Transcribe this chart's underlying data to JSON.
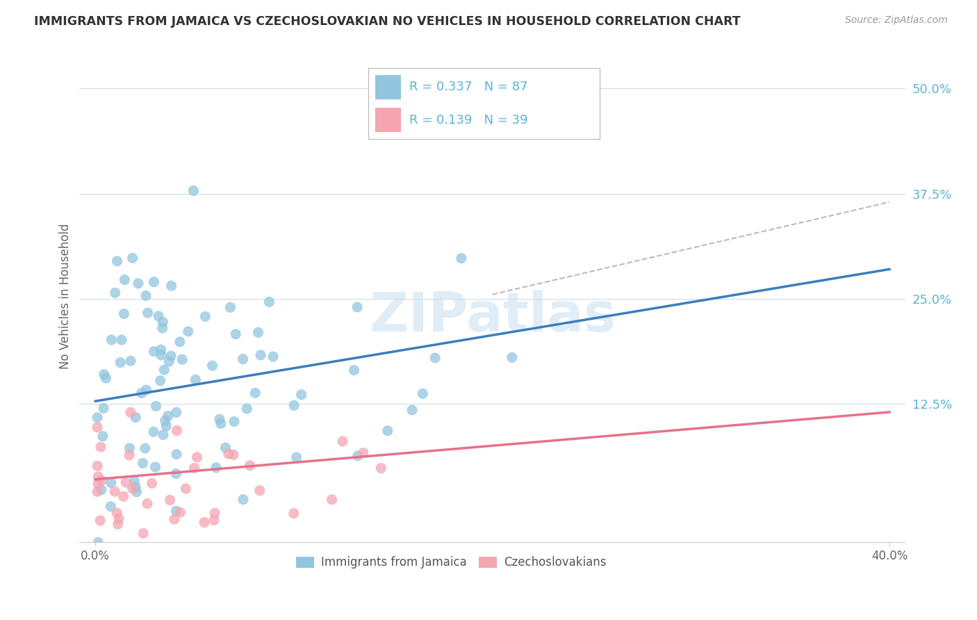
{
  "title": "IMMIGRANTS FROM JAMAICA VS CZECHOSLOVAKIAN NO VEHICLES IN HOUSEHOLD CORRELATION CHART",
  "source": "Source: ZipAtlas.com",
  "ylabel": "No Vehicles in Household",
  "color_jamaica": "#92c5de",
  "color_czech": "#f4a5b0",
  "color_trendline_jamaica": "#3a7dbf",
  "color_trendline_czech": "#e8708a",
  "color_dashed": "#aaaaaa",
  "color_grid": "#d0dce8",
  "color_ytick": "#5ab4d6",
  "color_xtick": "#666666",
  "color_title": "#333333",
  "color_source": "#999999",
  "color_ylabel": "#666666",
  "color_legend_text": "#5ab4d6",
  "color_watermark": "#c8dff0",
  "watermark_text": "ZIPatlas",
  "legend1_text": "R = 0.337   N = 87",
  "legend2_text": "R = 0.139   N = 39",
  "legend_jamaica": "Immigrants from Jamaica",
  "legend_czech": "Czechoslovakians",
  "xlim": [
    0.0,
    0.4
  ],
  "ylim": [
    -0.04,
    0.545
  ],
  "ytick_vals": [
    0.5,
    0.375,
    0.25,
    0.125
  ],
  "ytick_labels": [
    "50.0%",
    "37.5%",
    "25.0%",
    "12.5%"
  ],
  "xtick_vals": [
    0.0,
    0.4
  ],
  "xtick_labels": [
    "0.0%",
    "40.0%"
  ],
  "jam_trendline": [
    0.0,
    0.4,
    0.128,
    0.285
  ],
  "czech_trendline": [
    0.0,
    0.4,
    0.035,
    0.115
  ],
  "dashed_line": [
    0.2,
    0.4,
    0.255,
    0.365
  ],
  "jam_seed": 7,
  "czech_seed": 13,
  "scatter_size": 120,
  "scatter_alpha": 0.75
}
